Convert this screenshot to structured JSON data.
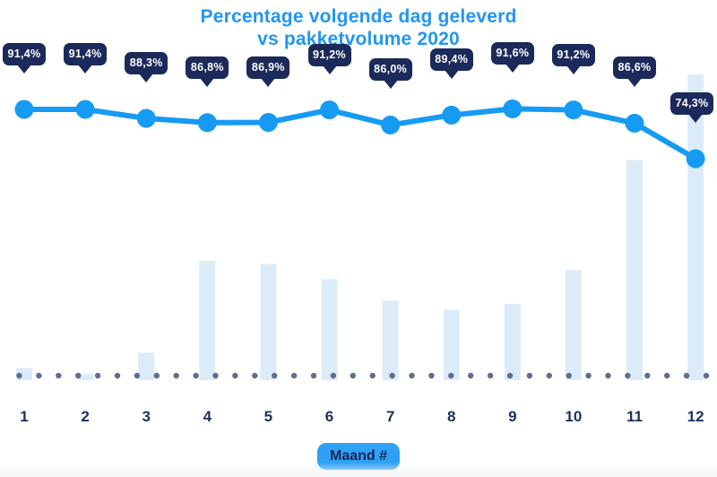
{
  "title": {
    "line1": "Percentage volgende dag geleverd",
    "line2": "vs pakketvolume 2020"
  },
  "x_axis": {
    "months": [
      "1",
      "2",
      "3",
      "4",
      "5",
      "6",
      "7",
      "8",
      "9",
      "10",
      "11",
      "12"
    ],
    "label_badge": "Maand #"
  },
  "chart_data": {
    "type": "combo",
    "title": "Percentage volgende dag geleverd vs pakketvolume 2020",
    "xlabel": "Maand #",
    "categories": [
      "1",
      "2",
      "3",
      "4",
      "5",
      "6",
      "7",
      "8",
      "9",
      "10",
      "11",
      "12"
    ],
    "series": [
      {
        "name": "Percentage volgende dag geleverd",
        "type": "line",
        "unit": "%",
        "values": [
          91.4,
          91.4,
          88.3,
          86.8,
          86.9,
          91.2,
          86.0,
          89.4,
          91.6,
          91.2,
          86.6,
          74.3
        ],
        "point_labels": [
          "91,4%",
          "91,4%",
          "88,3%",
          "86,8%",
          "86,9%",
          "91,2%",
          "86,0%",
          "89,4%",
          "91,6%",
          "91,2%",
          "86,6%",
          "74,3%"
        ]
      },
      {
        "name": "Pakketvolume 2020",
        "type": "bar",
        "unit": "relative height, no value axis shown",
        "values": [
          4,
          2,
          9,
          39,
          38,
          33,
          26,
          23,
          25,
          36,
          72,
          100
        ]
      }
    ],
    "legend": false,
    "grid": false,
    "baseline": "dotted"
  },
  "colors": {
    "title_blue": "#2196f3",
    "line_blue": "#169bf4",
    "tooltip_navy": "#1b2a5a",
    "axis_navy": "#1e2f5e",
    "bar_light_blue": "#dcebf8",
    "baseline_dot_gray": "#5e6d90",
    "badge_blue": "#2ea1f6",
    "badge_text_navy": "#172554",
    "background": "#ffffff"
  }
}
